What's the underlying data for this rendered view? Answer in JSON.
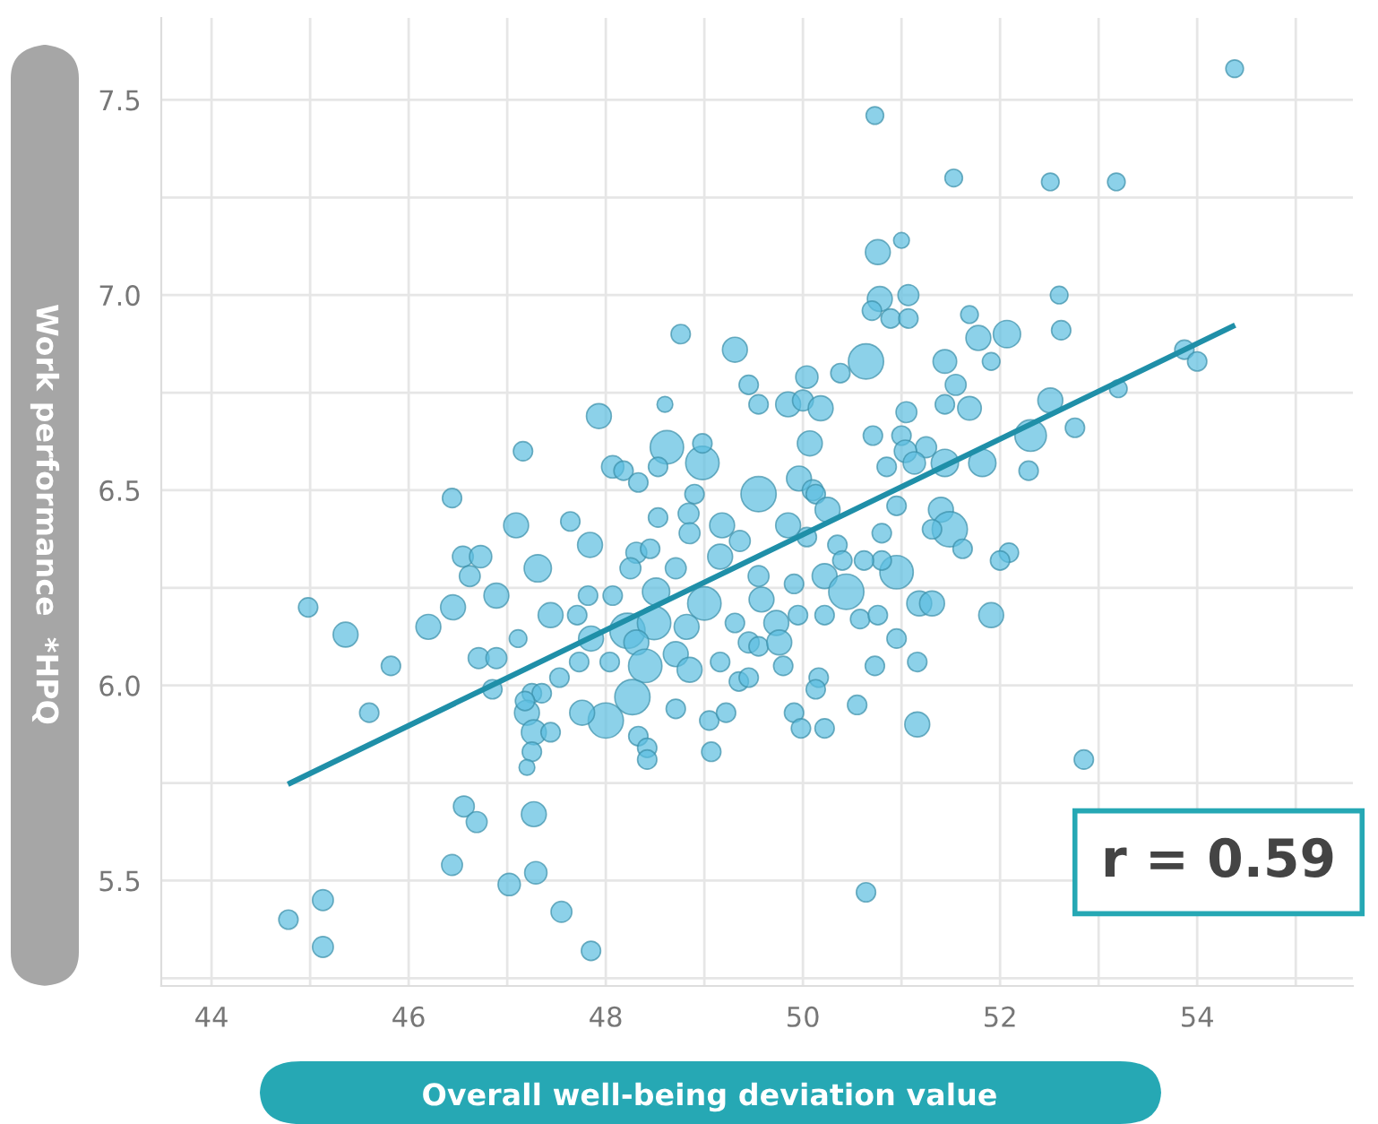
{
  "chart_data": {
    "type": "bubble",
    "xlabel": "Overall well-being deviation value",
    "ylabel": "Work performance  *HPQ",
    "annotations": [
      "r = 0.59"
    ],
    "xlim": [
      43.49,
      55.58
    ],
    "ylim": [
      5.23,
      7.71
    ],
    "xticks": [
      44,
      {
        "value": 45,
        "label": null
      },
      46,
      {
        "value": 47,
        "label": null
      },
      48,
      {
        "value": 49,
        "label": null
      },
      50,
      {
        "value": 51,
        "label": null
      },
      52,
      {
        "value": 53,
        "label": null
      },
      54,
      {
        "value": 55,
        "label": null
      }
    ],
    "yticks": [
      {
        "value": 5.25,
        "label": null
      },
      {
        "value": 5.5,
        "label": "5.5"
      },
      {
        "value": 5.75,
        "label": null
      },
      {
        "value": 6.0,
        "label": "6.0"
      },
      {
        "value": 6.25,
        "label": null
      },
      {
        "value": 6.5,
        "label": "6.5"
      },
      {
        "value": 6.75,
        "label": null
      },
      {
        "value": 7.0,
        "label": "7.0"
      },
      {
        "value": 7.25,
        "label": null
      },
      {
        "value": 7.5,
        "label": "7.5"
      }
    ],
    "grid": true,
    "marker": "circle",
    "series": [
      {
        "type": "bubble",
        "color": "#5bbde0",
        "x": [
          48.76,
          49.31,
          49.45,
          49.55,
          48.6,
          47.93,
          48.62,
          48.98,
          48.98,
          47.16,
          48.07,
          48.18,
          48.33,
          48.53,
          49.55,
          48.9,
          46.44,
          54.38,
          50.73,
          51.53,
          52.51,
          53.18,
          50.76,
          51.0,
          50.78,
          51.07,
          50.7,
          50.89,
          51.07,
          52.6,
          52.62,
          51.69,
          51.78,
          52.07,
          50.64,
          51.44,
          51.91,
          50.38,
          50.04,
          51.55,
          49.85,
          50.0,
          50.18,
          51.05,
          51.44,
          51.69,
          52.51,
          53.87,
          54.0,
          53.2,
          52.76,
          52.31,
          50.07,
          50.71,
          51.25,
          51.0,
          51.04,
          51.13,
          51.44,
          51.82,
          50.85,
          52.29,
          49.96,
          50.1,
          47.09,
          47.64,
          47.84,
          48.53,
          48.84,
          48.85,
          49.18,
          49.36,
          46.55,
          46.73,
          46.62,
          47.31,
          48.31,
          48.45,
          48.25,
          48.71,
          49.16,
          49.55,
          46.89,
          47.82,
          48.07,
          48.51,
          49.0,
          49.58,
          44.98,
          45.36,
          46.2,
          46.45,
          47.44,
          47.71,
          48.22,
          48.49,
          48.82,
          49.31,
          49.45,
          47.11,
          47.85,
          48.31,
          46.71,
          46.89,
          48.04,
          48.4,
          48.71,
          47.73,
          47.53,
          48.85,
          49.16,
          49.55,
          49.35,
          49.45,
          45.82,
          46.85,
          47.25,
          47.35,
          48.27,
          48.0,
          47.76,
          47.2,
          47.18,
          48.71,
          49.05,
          49.22,
          45.6,
          47.27,
          47.44,
          48.33,
          48.42,
          48.42,
          49.07,
          47.25,
          47.2,
          46.56,
          46.69,
          47.27,
          46.44,
          47.29,
          47.02,
          47.55,
          47.85,
          45.13,
          44.78,
          45.13,
          50.13,
          50.25,
          50.95,
          51.4,
          51.49,
          51.62,
          51.31,
          50.8,
          52.09,
          52.0,
          50.35,
          50.04,
          49.85,
          50.95,
          50.8,
          50.22,
          50.4,
          50.62,
          49.91,
          50.44,
          49.73,
          49.76,
          49.95,
          50.22,
          50.58,
          50.76,
          51.18,
          51.31,
          51.91,
          50.95,
          51.16,
          50.73,
          49.8,
          50.16,
          50.13,
          50.55,
          49.91,
          49.98,
          50.22,
          51.16,
          52.85,
          50.64
        ],
        "values": [
          6.9,
          6.86,
          6.77,
          6.72,
          6.72,
          6.69,
          6.61,
          6.57,
          6.62,
          6.6,
          6.56,
          6.55,
          6.52,
          6.56,
          6.49,
          6.49,
          6.48,
          7.58,
          7.46,
          7.3,
          7.29,
          7.29,
          7.11,
          7.14,
          6.99,
          7.0,
          6.96,
          6.94,
          6.94,
          7.0,
          6.91,
          6.95,
          6.89,
          6.9,
          6.83,
          6.83,
          6.83,
          6.8,
          6.79,
          6.77,
          6.72,
          6.73,
          6.71,
          6.7,
          6.72,
          6.71,
          6.73,
          6.86,
          6.83,
          6.76,
          6.66,
          6.64,
          6.62,
          6.64,
          6.61,
          6.64,
          6.6,
          6.57,
          6.57,
          6.57,
          6.56,
          6.55,
          6.53,
          6.5,
          6.41,
          6.42,
          6.36,
          6.43,
          6.44,
          6.39,
          6.41,
          6.37,
          6.33,
          6.33,
          6.28,
          6.3,
          6.34,
          6.35,
          6.3,
          6.3,
          6.33,
          6.28,
          6.23,
          6.23,
          6.23,
          6.24,
          6.21,
          6.22,
          6.2,
          6.13,
          6.15,
          6.2,
          6.18,
          6.18,
          6.14,
          6.16,
          6.15,
          6.16,
          6.11,
          6.12,
          6.12,
          6.11,
          6.07,
          6.07,
          6.06,
          6.05,
          6.08,
          6.06,
          6.02,
          6.04,
          6.06,
          6.1,
          6.01,
          6.02,
          6.05,
          5.99,
          5.98,
          5.98,
          5.97,
          5.91,
          5.93,
          5.93,
          5.96,
          5.94,
          5.91,
          5.93,
          5.93,
          5.88,
          5.88,
          5.87,
          5.84,
          5.81,
          5.83,
          5.83,
          5.79,
          5.69,
          5.65,
          5.67,
          5.54,
          5.52,
          5.49,
          5.42,
          5.32,
          5.45,
          5.4,
          5.33,
          6.49,
          6.45,
          6.46,
          6.45,
          6.4,
          6.35,
          6.4,
          6.39,
          6.34,
          6.32,
          6.36,
          6.38,
          6.41,
          6.29,
          6.32,
          6.28,
          6.32,
          6.32,
          6.26,
          6.24,
          6.16,
          6.11,
          6.18,
          6.18,
          6.17,
          6.18,
          6.21,
          6.21,
          6.18,
          6.12,
          6.06,
          6.05,
          6.05,
          6.02,
          5.99,
          5.95,
          5.93,
          5.89,
          5.89,
          5.9,
          5.81,
          5.47
        ],
        "sizes": [
          0.3,
          0.5,
          0.3,
          0.3,
          0.2,
          0.5,
          0.9,
          0.9,
          0.3,
          0.3,
          0.4,
          0.3,
          0.3,
          0.3,
          1,
          0.3,
          0.3,
          0.25,
          0.25,
          0.25,
          0.25,
          0.25,
          0.5,
          0.2,
          0.5,
          0.35,
          0.3,
          0.3,
          0.3,
          0.25,
          0.3,
          0.25,
          0.5,
          0.6,
          1,
          0.45,
          0.25,
          0.3,
          0.4,
          0.35,
          0.5,
          0.35,
          0.5,
          0.35,
          0.3,
          0.45,
          0.5,
          0.3,
          0.3,
          0.25,
          0.3,
          0.8,
          0.5,
          0.3,
          0.35,
          0.3,
          0.4,
          0.4,
          0.6,
          0.6,
          0.3,
          0.3,
          0.5,
          0.35,
          0.5,
          0.3,
          0.5,
          0.3,
          0.35,
          0.35,
          0.5,
          0.35,
          0.35,
          0.4,
          0.35,
          0.6,
          0.35,
          0.3,
          0.35,
          0.35,
          0.5,
          0.35,
          0.5,
          0.3,
          0.3,
          0.6,
          0.9,
          0.5,
          0.3,
          0.5,
          0.5,
          0.5,
          0.5,
          0.3,
          1,
          0.9,
          0.5,
          0.3,
          0.35,
          0.25,
          0.5,
          0.5,
          0.35,
          0.35,
          0.3,
          0.9,
          0.5,
          0.3,
          0.3,
          0.5,
          0.3,
          0.3,
          0.3,
          0.3,
          0.3,
          0.3,
          0.3,
          0.3,
          1,
          1,
          0.5,
          0.5,
          0.3,
          0.3,
          0.3,
          0.3,
          0.3,
          0.5,
          0.3,
          0.3,
          0.3,
          0.3,
          0.3,
          0.3,
          0.2,
          0.35,
          0.35,
          0.5,
          0.35,
          0.4,
          0.4,
          0.35,
          0.3,
          0.35,
          0.3,
          0.35,
          0.3,
          0.5,
          0.3,
          0.5,
          1,
          0.3,
          0.3,
          0.3,
          0.3,
          0.3,
          0.3,
          0.3,
          0.5,
          0.9,
          0.3,
          0.5,
          0.3,
          0.3,
          0.3,
          1,
          0.5,
          0.5,
          0.3,
          0.3,
          0.3,
          0.3,
          0.5,
          0.5,
          0.5,
          0.3,
          0.3,
          0.3,
          0.3,
          0.3,
          0.3,
          0.3,
          0.3,
          0.3,
          0.3,
          0.5,
          0.3,
          0.3
        ]
      },
      {
        "type": "line",
        "color": "#1f8fa8",
        "x": [
          44.8,
          54.36
        ],
        "values": [
          5.75,
          6.92
        ],
        "marker": "none"
      }
    ]
  }
}
